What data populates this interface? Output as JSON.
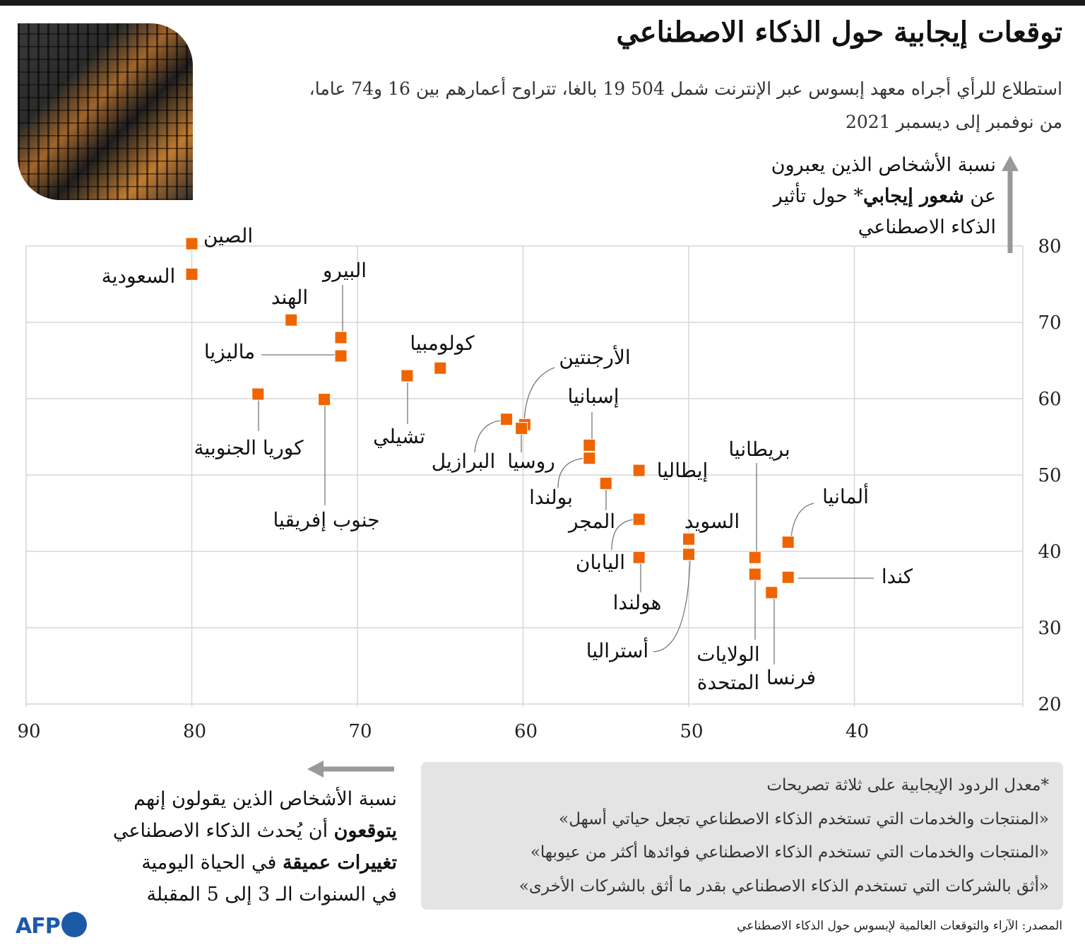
{
  "header": {
    "title": "توقعات إيجابية حول الذكاء الاصطناعي",
    "subtitle_line1": "استطلاع للرأي أجراه معهد إبسوس عبر الإنترنت شمل 504 19 بالغا، تتراوح أعمارهم بين 16 و74 عاما،",
    "subtitle_line2": "من نوفمبر إلى ديسمبر 2021"
  },
  "chart_data": {
    "type": "scatter",
    "ylabel_line1": "نسبة الأشخاص الذين يعبرون",
    "ylabel_line2_pre": "عن ",
    "ylabel_line2_bold": "شعور إيجابي",
    "ylabel_line2_post": "* حول تأثير",
    "ylabel_line3": "الذكاء الاصطناعي",
    "xlabel_line1": "نسبة الأشخاص الذين يقولون إنهم",
    "xlabel_line2_bold": "يتوقعون",
    "xlabel_line2_post": " أن يُحدث الذكاء الاصطناعي",
    "xlabel_line3_bold": "تغييرات عميقة",
    "xlabel_line3_post": " في الحياة اليومية",
    "xlabel_line4": "في السنوات الـ 3 إلى 5 المقبلة",
    "xlim": [
      90,
      30
    ],
    "ylim": [
      20,
      80
    ],
    "x_reversed": true,
    "x_ticks": [
      "90",
      "80",
      "70",
      "60",
      "50",
      "40"
    ],
    "y_ticks": [
      "80",
      "70",
      "60",
      "50",
      "40",
      "30",
      "20"
    ],
    "grid": true,
    "marker_color": "#ee6500",
    "points": [
      {
        "label": "الصين",
        "x": 80,
        "y": 80.3
      },
      {
        "label": "السعودية",
        "x": 80,
        "y": 76.3
      },
      {
        "label": "الهند",
        "x": 74,
        "y": 70.3
      },
      {
        "label": "البيرو",
        "x": 71,
        "y": 68
      },
      {
        "label": "ماليزيا",
        "x": 71,
        "y": 65.6
      },
      {
        "label": "كوريا الجنوبية",
        "x": 76,
        "y": 60.6
      },
      {
        "label": "جنوب إفريقيا",
        "x": 72,
        "y": 59.9
      },
      {
        "label": "تشيلي",
        "x": 67,
        "y": 63
      },
      {
        "label": "كولومبيا",
        "x": 65,
        "y": 64
      },
      {
        "label": "الأرجنتين",
        "x": 59.9,
        "y": 56.6
      },
      {
        "label": "إسبانيا",
        "x": 56,
        "y": 53.9
      },
      {
        "label": "البرازيل",
        "x": 61,
        "y": 57.3
      },
      {
        "label": "روسيا",
        "x": 60.1,
        "y": 56.1
      },
      {
        "label": "بولندا",
        "x": 56,
        "y": 52.2
      },
      {
        "label": "إيطاليا",
        "x": 53,
        "y": 50.6
      },
      {
        "label": "المجر",
        "x": 55,
        "y": 48.9
      },
      {
        "label": "اليابان",
        "x": 53,
        "y": 44.2
      },
      {
        "label": "هولندا",
        "x": 53,
        "y": 39.2
      },
      {
        "label": "السويد",
        "x": 50,
        "y": 41.6
      },
      {
        "label": "أستراليا",
        "x": 50,
        "y": 39.6
      },
      {
        "label": "بريطانيا",
        "x": 46,
        "y": 39.2
      },
      {
        "label": "الولايات المتحدة",
        "x": 46,
        "y": 37
      },
      {
        "label": "فرنسا",
        "x": 45,
        "y": 34.6
      },
      {
        "label": "ألمانيا",
        "x": 44,
        "y": 41.2
      },
      {
        "label": "كندا",
        "x": 44,
        "y": 36.6
      }
    ]
  },
  "notes": {
    "line1": "*معدل الردود الإيجابية على ثلاثة تصريحات",
    "line2": "«المنتجات والخدمات التي تستخدم الذكاء الاصطناعي تجعل حياتي أسهل»",
    "line3": "«المنتجات والخدمات التي تستخدم الذكاء الاصطناعي فوائدها أكثر من عيوبها»",
    "line4": "«أثق بالشركات التي تستخدم الذكاء الاصطناعي بقدر ما أثق بالشركات الأخرى»"
  },
  "footer": {
    "source": "المصدر: الآراء والتوقعات العالمية لإبسوس حول الذكاء الاصطناعي",
    "logo_text": "AFP"
  }
}
